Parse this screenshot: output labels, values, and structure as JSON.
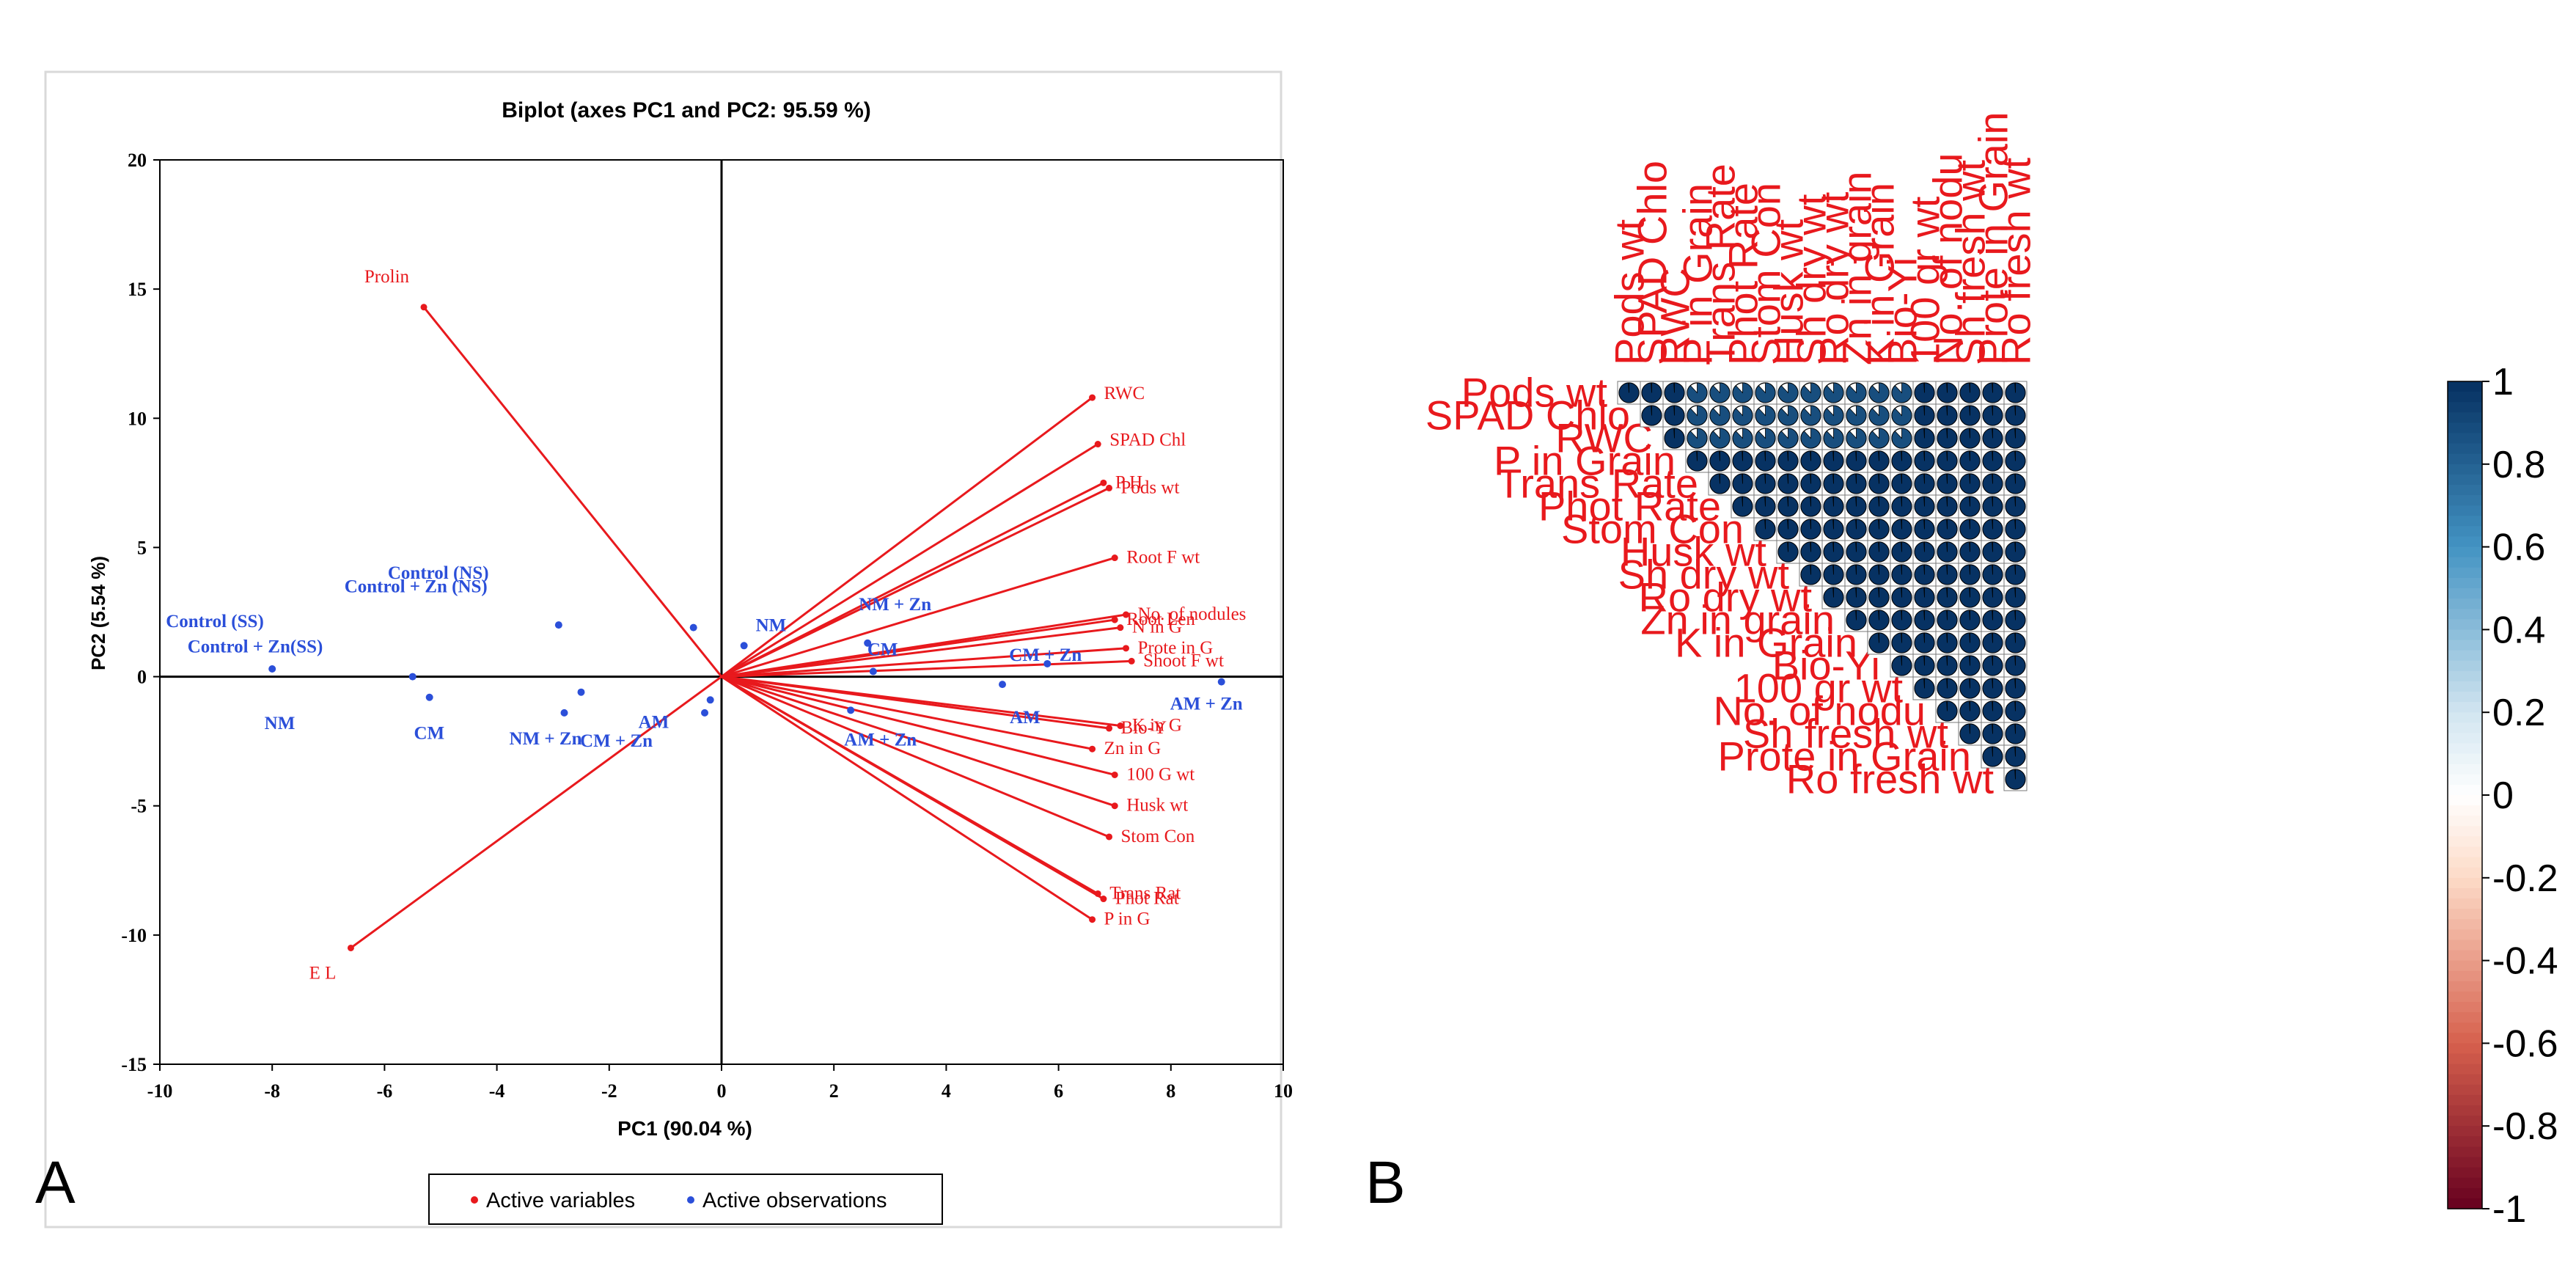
{
  "panel_labels": {
    "a": "A",
    "b": "B"
  },
  "colors": {
    "variables": "#e8191d",
    "observations": "#2b4fd9",
    "axis": "#000000"
  },
  "chart_data": [
    {
      "type": "scatter",
      "subtype": "biplot",
      "title": "Biplot (axes PC1 and PC2: 95.59 %)",
      "xlabel": "PC1 (90.04 %)",
      "ylabel": "PC2 (5.54 %)",
      "xlim": [
        -10,
        10
      ],
      "ylim": [
        -15,
        20
      ],
      "xticks": [
        -10,
        -8,
        -6,
        -4,
        -2,
        0,
        2,
        4,
        6,
        8,
        10
      ],
      "yticks": [
        -15,
        -10,
        -5,
        0,
        5,
        10,
        15,
        20
      ],
      "legend": [
        "Active variables",
        "Active observations"
      ],
      "variables": [
        {
          "label": "Prolin",
          "x": -5.3,
          "y": 14.3
        },
        {
          "label": "RWC",
          "x": 6.6,
          "y": 10.8
        },
        {
          "label": "SPAD Chl",
          "x": 6.7,
          "y": 9.0
        },
        {
          "label": "P H",
          "x": 6.8,
          "y": 7.5
        },
        {
          "label": "Pods wt",
          "x": 6.9,
          "y": 7.3
        },
        {
          "label": "Root F wt",
          "x": 7.0,
          "y": 4.6
        },
        {
          "label": "No. of nodules",
          "x": 7.2,
          "y": 2.4
        },
        {
          "label": "Root Len",
          "x": 7.0,
          "y": 2.2
        },
        {
          "label": "N in G",
          "x": 7.1,
          "y": 1.9
        },
        {
          "label": "Prote in G",
          "x": 7.2,
          "y": 1.1
        },
        {
          "label": "Shoot F wt",
          "x": 7.3,
          "y": 0.6
        },
        {
          "label": "K in G",
          "x": 7.1,
          "y": -1.9
        },
        {
          "label": "Bio-Y",
          "x": 6.9,
          "y": -2.0
        },
        {
          "label": "Zn in G",
          "x": 6.6,
          "y": -2.8
        },
        {
          "label": "100 G wt",
          "x": 7.0,
          "y": -3.8
        },
        {
          "label": "Husk wt",
          "x": 7.0,
          "y": -5.0
        },
        {
          "label": "Stom Con",
          "x": 6.9,
          "y": -6.2
        },
        {
          "label": "Trans Rat",
          "x": 6.7,
          "y": -8.4
        },
        {
          "label": "Phot Rat",
          "x": 6.8,
          "y": -8.6
        },
        {
          "label": "P in G",
          "x": 6.6,
          "y": -9.4
        },
        {
          "label": "E L",
          "x": -6.6,
          "y": -10.5
        }
      ],
      "observations": [
        {
          "label": "Control (SS)",
          "x": -8.0,
          "y": 0.3
        },
        {
          "label": "Control + Zn(SS)",
          "x": -5.5,
          "y": 0.0
        },
        {
          "label": "Control (NS)",
          "x": -2.9,
          "y": 2.0
        },
        {
          "label": "Control + Zn (NS)",
          "x": -0.5,
          "y": 1.9
        },
        {
          "label": "NM",
          "x": -5.2,
          "y": -0.8
        },
        {
          "label": "NM + Zn",
          "x": -2.8,
          "y": -1.4
        },
        {
          "label": "CM",
          "x": -2.5,
          "y": -0.6
        },
        {
          "label": "CM + Zn",
          "x": -0.3,
          "y": -1.4
        },
        {
          "label": "AM",
          "x": -0.2,
          "y": -0.9
        },
        {
          "label": "NM",
          "x": 0.4,
          "y": 1.2
        },
        {
          "label": "NM + Zn",
          "x": 2.6,
          "y": 1.3
        },
        {
          "label": "CM",
          "x": 2.7,
          "y": 0.2
        },
        {
          "label": "CM + Zn",
          "x": 5.8,
          "y": 0.5
        },
        {
          "label": "AM",
          "x": 5.0,
          "y": -0.3
        },
        {
          "label": "AM + Zn",
          "x": 8.9,
          "y": -0.2
        },
        {
          "label": "AM + Zn",
          "x": 2.3,
          "y": -1.3
        }
      ]
    },
    {
      "type": "heatmap",
      "subtype": "correlation-matrix-upper",
      "row_labels": [
        "Pods wt",
        "SPAD Chlo",
        "RWC",
        "P in Grain",
        "Trans Rate",
        "Phot Rate",
        "Stom Con",
        "Husk wt",
        "Sh dry wt",
        "Ro dry wt",
        "Zn in grain",
        "K in Grain",
        "Bio-Yi",
        "100 gr wt",
        "No. of nodu",
        "Sh fresh wt",
        "Prote in Grain",
        "Ro fresh wt"
      ],
      "column_labels": [
        "Pods wt",
        "SPAD Chlo",
        "RWC",
        "P in Grain",
        "Trans Rate",
        "Phot Rate",
        "Stom Con",
        "Husk wt",
        "Sh dry wt",
        "Ro dry wt",
        "Zn in grain",
        "K in Grain",
        "Bio-Yi",
        "100 gr wt",
        "No. of nodu",
        "Sh fresh wt",
        "Prote in Grain",
        "Ro fresh wt"
      ],
      "moderate_correlation_value": 0.88,
      "high_correlation_value": 0.99,
      "moderate_cells": "rows Pods wt, SPAD Chlo, RWC vs columns P in Grain through Bio-Yi",
      "colorbar": {
        "ticks": [
          "1",
          "0.8",
          "0.6",
          "0.4",
          "0.2",
          "0",
          "-0.2",
          "-0.4",
          "-0.6",
          "-0.8",
          "-1"
        ],
        "values": [
          1,
          0.8,
          0.6,
          0.4,
          0.2,
          0,
          -0.2,
          -0.4,
          -0.6,
          -0.8,
          -1
        ],
        "range": [
          -1,
          1
        ]
      }
    }
  ]
}
